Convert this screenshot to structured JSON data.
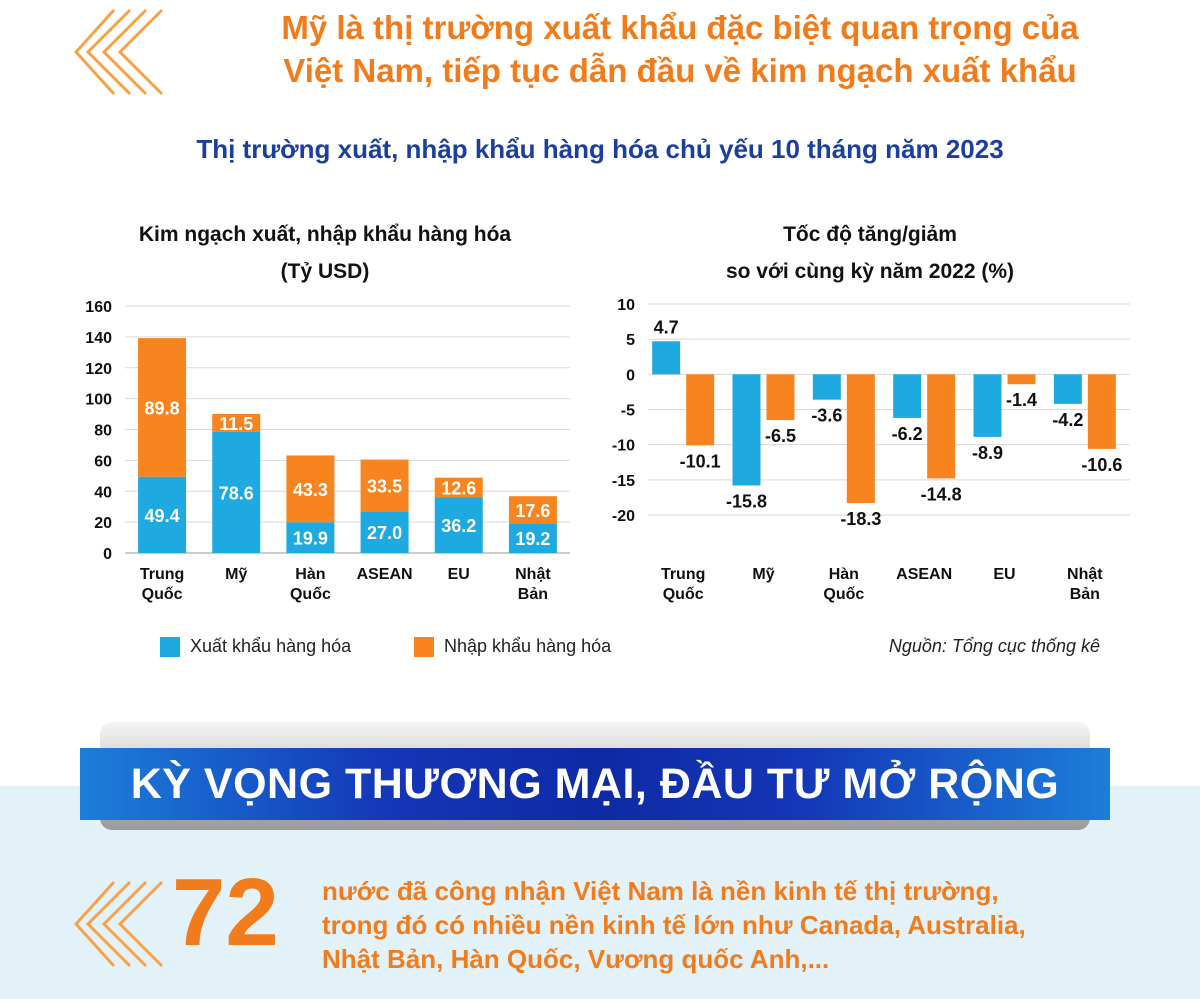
{
  "headline": {
    "line1": "Mỹ là thị trường xuất khẩu đặc biệt quan trọng của",
    "line2": "Việt Nam, tiếp tục dẫn đầu về kim ngạch xuất khẩu"
  },
  "subtitle": "Thị trường xuất, nhập khẩu hàng hóa chủ yếu 10 tháng năm 2023",
  "colors": {
    "accent": "#f27c1c",
    "export": "#1fa9e1",
    "import": "#f7841e",
    "title_blue": "#1a3f9e"
  },
  "chart_data": [
    {
      "type": "bar",
      "stacked": true,
      "title": "Kim ngạch xuất, nhập khẩu hàng hóa",
      "unit": "(Tỷ USD)",
      "categories": [
        "Trung Quốc",
        "Mỹ",
        "Hàn Quốc",
        "ASEAN",
        "EU",
        "Nhật Bản"
      ],
      "series": [
        {
          "name": "Xuất khẩu hàng hóa",
          "values": [
            49.4,
            78.6,
            19.9,
            27.0,
            36.2,
            19.2
          ]
        },
        {
          "name": "Nhập khẩu hàng hóa",
          "values": [
            89.8,
            11.5,
            43.3,
            33.5,
            12.6,
            17.6
          ]
        }
      ],
      "ylim": [
        0,
        160
      ],
      "yticks": [
        0,
        20,
        40,
        60,
        80,
        100,
        120,
        140,
        160
      ],
      "grid": true
    },
    {
      "type": "bar",
      "title_line1": "Tốc độ tăng/giảm",
      "title_line2": "so với cùng kỳ năm 2022 (%)",
      "categories": [
        "Trung Quốc",
        "Mỹ",
        "Hàn Quốc",
        "ASEAN",
        "EU",
        "Nhật Bản"
      ],
      "series": [
        {
          "name": "Xuất khẩu hàng hóa",
          "values": [
            4.7,
            -15.8,
            -3.6,
            -6.2,
            -8.9,
            -4.2
          ]
        },
        {
          "name": "Nhập khẩu hàng hóa",
          "values": [
            -10.1,
            -6.5,
            -18.3,
            -14.8,
            -1.4,
            -10.6
          ]
        }
      ],
      "ylim": [
        -20,
        10
      ],
      "yticks": [
        10,
        5,
        0,
        -5,
        -10,
        -15,
        -20
      ],
      "grid": true
    }
  ],
  "legend": {
    "export": "Xuất khẩu hàng hóa",
    "import": "Nhập khẩu hàng hóa"
  },
  "source": "Nguồn: Tổng cục thống kê",
  "banner": "KỲ VỌNG THƯƠNG MẠI, ĐẦU TƯ MỞ RỘNG",
  "stat": {
    "number": "72",
    "line1": "nước đã công nhận Việt Nam là nền kinh tế thị trường,",
    "line2": "trong đó có nhiều nền kinh tế lớn như Canada, Australia,",
    "line3": "Nhật Bản, Hàn Quốc, Vương quốc Anh,..."
  }
}
